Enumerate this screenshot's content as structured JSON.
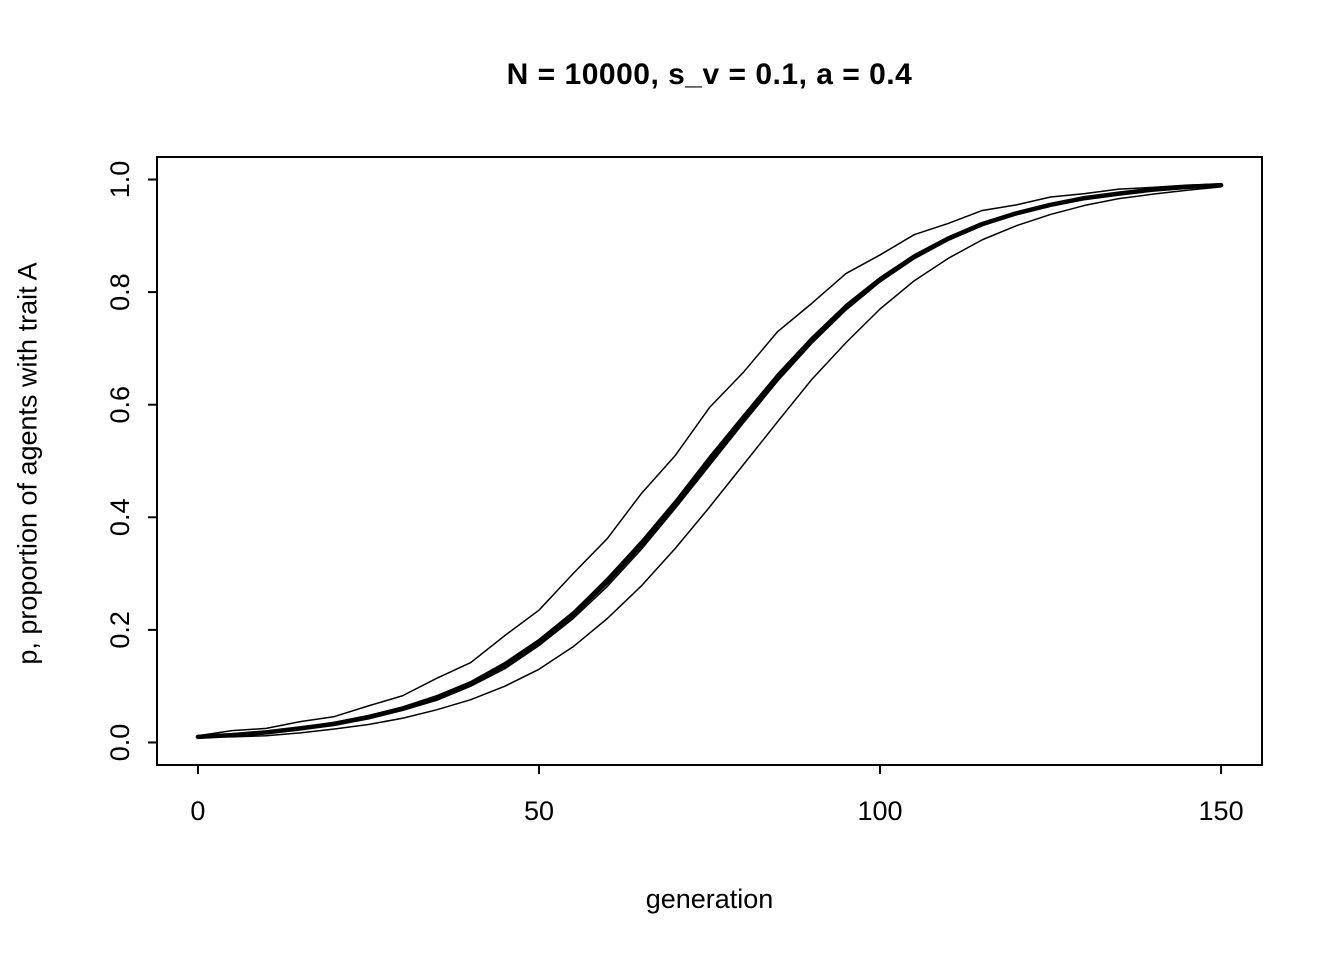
{
  "title": "N = 10000, s_v = 0.1, a = 0.4",
  "chart_data": {
    "type": "line",
    "title": "N = 10000, s_v = 0.1, a = 0.4",
    "xlabel": "generation",
    "ylabel": "p, proportion of agents with trait A",
    "xlim": [
      0,
      150
    ],
    "ylim": [
      0,
      1
    ],
    "grid": false,
    "legend": "none",
    "line_color": "#000000",
    "x_ticks": [
      0,
      50,
      100,
      150
    ],
    "x_tick_labels": [
      "0",
      "50",
      "100",
      "150"
    ],
    "y_ticks": [
      0.0,
      0.2,
      0.4,
      0.6,
      0.8,
      1.0
    ],
    "y_tick_labels": [
      "0.0",
      "0.2",
      "0.4",
      "0.6",
      "0.8",
      "1.0"
    ],
    "x": [
      0,
      5,
      10,
      15,
      20,
      25,
      30,
      35,
      40,
      45,
      50,
      55,
      60,
      65,
      70,
      75,
      80,
      85,
      90,
      95,
      100,
      105,
      110,
      115,
      120,
      125,
      130,
      135,
      140,
      145,
      150
    ],
    "series": [
      {
        "name": "run-1",
        "line_width": 1.5,
        "values": [
          0.012,
          0.021,
          0.025,
          0.037,
          0.046,
          0.065,
          0.083,
          0.114,
          0.142,
          0.19,
          0.235,
          0.3,
          0.362,
          0.442,
          0.51,
          0.595,
          0.658,
          0.73,
          0.78,
          0.833,
          0.866,
          0.902,
          0.922,
          0.945,
          0.955,
          0.969,
          0.975,
          0.983,
          0.986,
          0.99,
          0.992
        ]
      },
      {
        "name": "run-2",
        "line_width": 1.5,
        "values": [
          0.01,
          0.01,
          0.012,
          0.017,
          0.024,
          0.032,
          0.043,
          0.058,
          0.076,
          0.1,
          0.13,
          0.17,
          0.22,
          0.278,
          0.345,
          0.418,
          0.494,
          0.57,
          0.645,
          0.71,
          0.77,
          0.82,
          0.86,
          0.893,
          0.918,
          0.938,
          0.954,
          0.966,
          0.974,
          0.981,
          0.987
        ]
      },
      {
        "name": "run-3",
        "line_width": 1.5,
        "values": [
          0.011,
          0.014,
          0.02,
          0.026,
          0.036,
          0.048,
          0.063,
          0.083,
          0.108,
          0.142,
          0.183,
          0.232,
          0.292,
          0.358,
          0.43,
          0.508,
          0.582,
          0.655,
          0.72,
          0.778,
          0.826,
          0.866,
          0.898,
          0.923,
          0.942,
          0.957,
          0.968,
          0.976,
          0.983,
          0.988,
          0.991
        ]
      },
      {
        "name": "run-4",
        "line_width": 1.5,
        "values": [
          0.009,
          0.012,
          0.016,
          0.023,
          0.031,
          0.042,
          0.057,
          0.075,
          0.1,
          0.131,
          0.172,
          0.22,
          0.277,
          0.343,
          0.416,
          0.492,
          0.568,
          0.642,
          0.709,
          0.768,
          0.818,
          0.859,
          0.892,
          0.918,
          0.938,
          0.953,
          0.965,
          0.974,
          0.981,
          0.986,
          0.99
        ]
      },
      {
        "name": "run-5",
        "line_width": 1.5,
        "values": [
          0.01,
          0.013,
          0.019,
          0.024,
          0.034,
          0.046,
          0.059,
          0.081,
          0.103,
          0.139,
          0.175,
          0.23,
          0.282,
          0.355,
          0.42,
          0.503,
          0.579,
          0.651,
          0.717,
          0.775,
          0.824,
          0.864,
          0.896,
          0.92,
          0.941,
          0.956,
          0.966,
          0.976,
          0.982,
          0.987,
          0.99
        ]
      },
      {
        "name": "mean",
        "line_width": 4.5,
        "values": [
          0.01,
          0.013,
          0.018,
          0.025,
          0.033,
          0.045,
          0.06,
          0.079,
          0.105,
          0.137,
          0.178,
          0.227,
          0.285,
          0.351,
          0.424,
          0.5,
          0.576,
          0.649,
          0.715,
          0.773,
          0.822,
          0.863,
          0.895,
          0.921,
          0.94,
          0.955,
          0.967,
          0.975,
          0.982,
          0.987,
          0.99
        ]
      }
    ]
  }
}
